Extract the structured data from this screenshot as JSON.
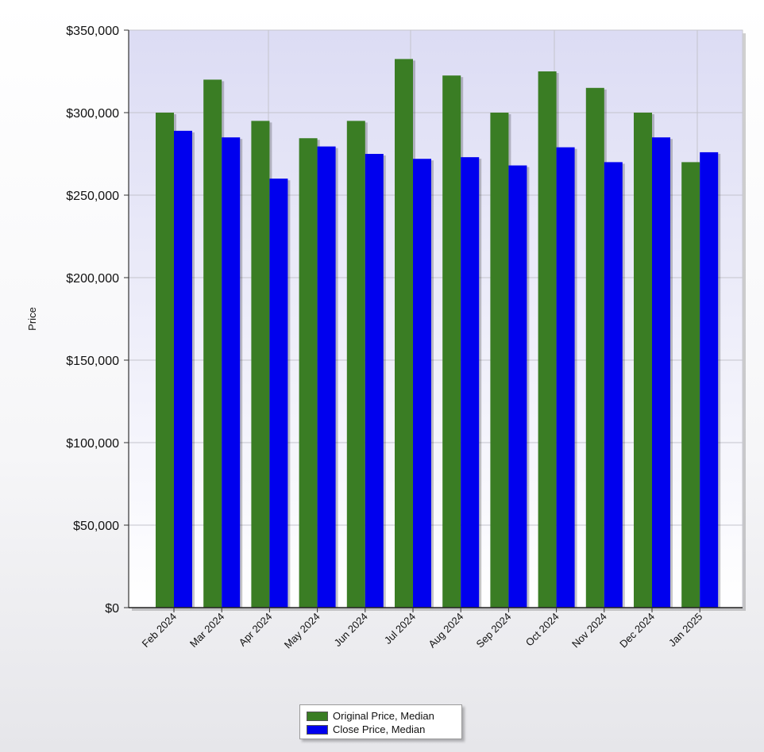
{
  "chart_data": {
    "type": "bar",
    "ylabel": "Price",
    "ylim": [
      0,
      350000
    ],
    "yticks": [
      0,
      50000,
      100000,
      150000,
      200000,
      250000,
      300000,
      350000
    ],
    "ytick_labels": [
      "$0",
      "$50,000",
      "$100,000",
      "$150,000",
      "$200,000",
      "$250,000",
      "$300,000",
      "$350,000"
    ],
    "categories": [
      "Feb 2024",
      "Mar 2024",
      "Apr 2024",
      "May 2024",
      "Jun 2024",
      "Jul 2024",
      "Aug 2024",
      "Sep 2024",
      "Oct 2024",
      "Nov 2024",
      "Dec 2024",
      "Jan 2025"
    ],
    "series": [
      {
        "name": "Original Price, Median",
        "color": "#3a7d24",
        "values": [
          300000,
          320000,
          295000,
          284500,
          295000,
          332500,
          322500,
          300000,
          325000,
          315000,
          300000,
          270000
        ]
      },
      {
        "name": "Close Price, Median",
        "color": "#0000ee",
        "values": [
          289000,
          285000,
          260000,
          279500,
          275000,
          272000,
          273000,
          268000,
          279000,
          270000,
          285000,
          276000
        ]
      }
    ],
    "grid": true,
    "legend": "bottom-center"
  }
}
